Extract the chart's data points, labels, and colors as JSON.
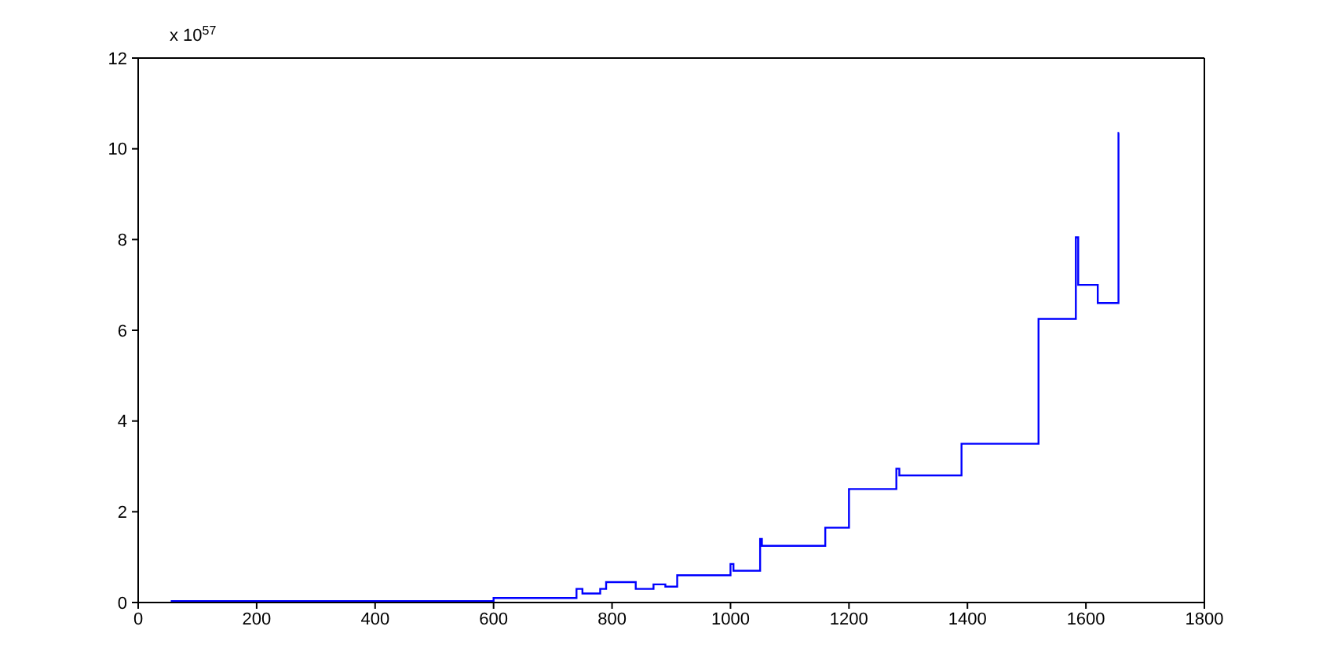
{
  "chart_data": {
    "type": "step",
    "x": [
      55,
      600,
      730,
      740,
      750,
      780,
      790,
      830,
      840,
      870,
      890,
      910,
      1000,
      1005,
      1010,
      1050,
      1053,
      1155,
      1160,
      1200,
      1275,
      1280,
      1285,
      1390,
      1520,
      1583,
      1587,
      1590,
      1620,
      1655,
      1656
    ],
    "series": [
      {
        "color": "#0000ff",
        "values": [
          0.03,
          0.1,
          0.1,
          0.3,
          0.2,
          0.3,
          0.45,
          0.45,
          0.3,
          0.4,
          0.35,
          0.6,
          0.85,
          0.7,
          0.7,
          1.4,
          1.25,
          1.25,
          1.65,
          2.5,
          2.5,
          2.95,
          2.8,
          3.5,
          6.25,
          8.05,
          7.0,
          7.0,
          6.6,
          10.35,
          10.35
        ]
      }
    ],
    "xlim": [
      0,
      1800
    ],
    "xticks": [
      0,
      200,
      400,
      600,
      800,
      1000,
      1200,
      1400,
      1600,
      1800
    ],
    "ylim": [
      0,
      12
    ],
    "yticks": [
      0,
      2,
      4,
      6,
      8,
      10,
      12
    ],
    "annotations": [
      "x 10$^{57}$"
    ],
    "grid": false,
    "legend": false
  }
}
